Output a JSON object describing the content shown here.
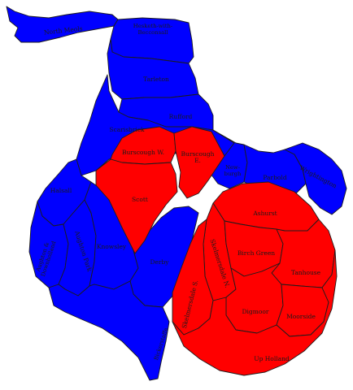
{
  "colors": {
    "party_blue": "#0000ff",
    "party_red": "#ff0000",
    "boundary": "#1c1c1c",
    "background": "#ffffff"
  },
  "wards": [
    {
      "id": "north-meols",
      "label": "North Meols",
      "color": "blue"
    },
    {
      "id": "hesketh-with-becconsall",
      "label": "Hesketh-with-Becconsall",
      "label_lines": [
        "Hesketh-with-",
        "Becconsall"
      ],
      "color": "blue"
    },
    {
      "id": "tarleton",
      "label": "Tarleton",
      "color": "blue"
    },
    {
      "id": "rufford",
      "label": "Rufford",
      "color": "blue"
    },
    {
      "id": "scarisbrick",
      "label": "Scarisbrick",
      "color": "blue"
    },
    {
      "id": "burscough-west",
      "label": "Burscough W.",
      "color": "red"
    },
    {
      "id": "burscough-east",
      "label": "Burscough E.",
      "label_lines": [
        "Burscough",
        "E."
      ],
      "color": "red"
    },
    {
      "id": "newburgh",
      "label": "Newburgh",
      "label_lines": [
        "New-",
        "burgh"
      ],
      "color": "blue"
    },
    {
      "id": "parbold",
      "label": "Parbold",
      "color": "blue"
    },
    {
      "id": "wrightington",
      "label": "Wrightington",
      "color": "blue"
    },
    {
      "id": "halsall",
      "label": "Halsall",
      "color": "blue"
    },
    {
      "id": "scott",
      "label": "Scott",
      "color": "red"
    },
    {
      "id": "ashurst",
      "label": "Ashurst",
      "color": "red"
    },
    {
      "id": "aughton-downholland",
      "label": "Aughton & Downholland",
      "label_lines": [
        "Aughton &",
        "Downholland"
      ],
      "color": "blue"
    },
    {
      "id": "aughton-park",
      "label": "Aughton Park",
      "color": "blue"
    },
    {
      "id": "knowsley",
      "label": "Knowsley",
      "color": "blue"
    },
    {
      "id": "derby",
      "label": "Derby",
      "color": "blue"
    },
    {
      "id": "skelmersdale-north",
      "label": "Skelmersdale N.",
      "color": "red"
    },
    {
      "id": "birch-green",
      "label": "Birch Green",
      "color": "red"
    },
    {
      "id": "tanhouse",
      "label": "Tanhouse",
      "color": "red"
    },
    {
      "id": "skelmersdale-south",
      "label": "Skelmersdale S.",
      "color": "red"
    },
    {
      "id": "digmoor",
      "label": "Digmoor",
      "color": "red"
    },
    {
      "id": "moorside",
      "label": "Moorside",
      "color": "red"
    },
    {
      "id": "bickerstaffe",
      "label": "Bickerstaffe",
      "color": "blue"
    },
    {
      "id": "up-holland",
      "label": "Up Holland",
      "color": "red"
    }
  ]
}
